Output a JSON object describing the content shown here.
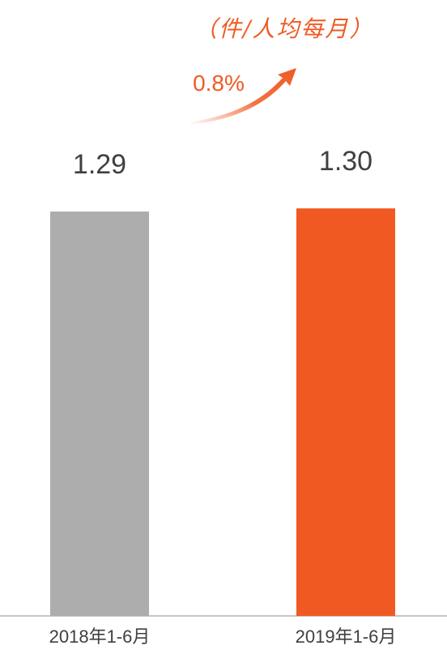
{
  "chart_data": {
    "type": "bar",
    "categories": [
      "2018年1-6月",
      "2019年1-6月"
    ],
    "values": [
      1.29,
      1.3
    ],
    "data_labels": [
      "1.29",
      "1.30"
    ],
    "title": "",
    "unit_label": "（件/人均每月）",
    "growth_label": "0.8%",
    "xlabel": "",
    "ylabel": "",
    "grid": false,
    "legend": "none",
    "bar_colors": [
      "#adadad",
      "#f05a22"
    ],
    "accent_color": "#f05a22",
    "axis_color": "#b3b3b3"
  }
}
